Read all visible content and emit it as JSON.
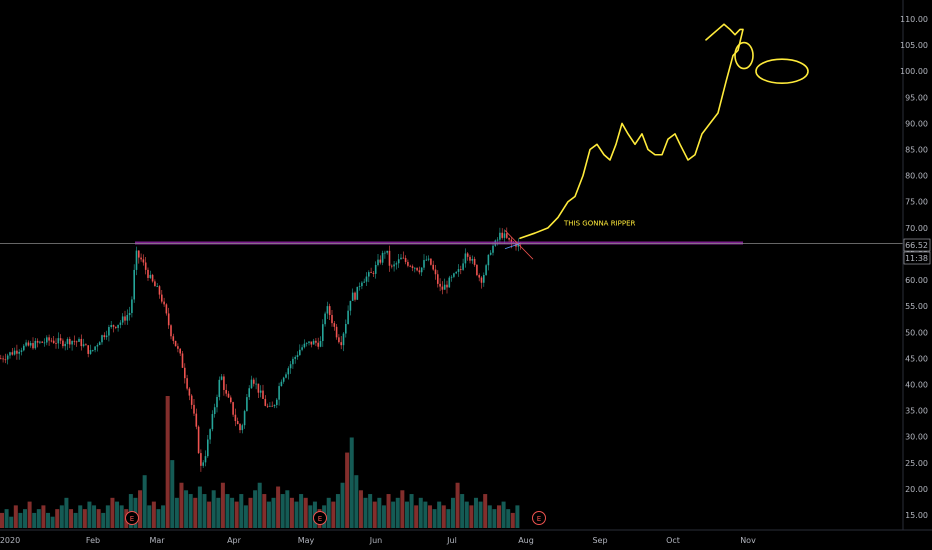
{
  "chart_data": {
    "type": "candlestick",
    "title": "",
    "xlabel": "",
    "ylabel": "",
    "x_ticks": [
      "2020",
      "Feb",
      "Mar",
      "Apr",
      "May",
      "Jun",
      "Jul",
      "Aug",
      "Sep",
      "Oct",
      "Nov"
    ],
    "y_ticks": [
      "15.00",
      "20.00",
      "25.00",
      "30.00",
      "35.00",
      "40.00",
      "45.00",
      "50.00",
      "55.00",
      "60.00",
      "65.00",
      "70.00",
      "75.00",
      "80.00",
      "85.00",
      "90.00",
      "95.00",
      "100.00",
      "105.00",
      "110.00"
    ],
    "ylim": [
      13,
      112
    ],
    "price_label": "66.52",
    "time_label": "11:38",
    "horizontal_line_level": 67,
    "annotation_text": "THIS GONNA RIPPER",
    "earnings_markers": [
      "E",
      "E",
      "E"
    ],
    "price_path": [
      [
        0,
        45
      ],
      [
        10,
        46
      ],
      [
        20,
        47
      ],
      [
        30,
        47.5
      ],
      [
        40,
        48
      ],
      [
        50,
        48.5
      ],
      [
        60,
        48
      ],
      [
        70,
        48.5
      ],
      [
        80,
        48
      ],
      [
        90,
        46
      ],
      [
        100,
        49
      ],
      [
        110,
        51
      ],
      [
        120,
        52
      ],
      [
        130,
        54
      ],
      [
        135,
        65
      ],
      [
        140,
        64
      ],
      [
        145,
        62
      ],
      [
        150,
        60
      ],
      [
        160,
        57
      ],
      [
        170,
        50
      ],
      [
        180,
        45
      ],
      [
        190,
        37
      ],
      [
        195,
        32
      ],
      [
        200,
        24
      ],
      [
        205,
        27
      ],
      [
        210,
        32
      ],
      [
        215,
        37
      ],
      [
        220,
        42
      ],
      [
        225,
        38
      ],
      [
        230,
        36
      ],
      [
        235,
        33
      ],
      [
        240,
        31
      ],
      [
        245,
        36
      ],
      [
        250,
        42
      ],
      [
        255,
        40
      ],
      [
        260,
        38
      ],
      [
        265,
        36
      ],
      [
        270,
        35
      ],
      [
        275,
        37
      ],
      [
        280,
        41
      ],
      [
        290,
        44
      ],
      [
        300,
        47
      ],
      [
        310,
        48
      ],
      [
        320,
        48
      ],
      [
        325,
        55
      ],
      [
        330,
        53
      ],
      [
        335,
        50
      ],
      [
        340,
        48
      ],
      [
        345,
        52
      ],
      [
        350,
        57
      ],
      [
        355,
        57
      ],
      [
        360,
        60
      ],
      [
        370,
        61
      ],
      [
        380,
        64
      ],
      [
        385,
        66
      ],
      [
        390,
        62
      ],
      [
        400,
        64
      ],
      [
        410,
        63
      ],
      [
        420,
        62
      ],
      [
        425,
        64
      ],
      [
        430,
        63
      ],
      [
        440,
        58
      ],
      [
        450,
        60
      ],
      [
        460,
        62
      ],
      [
        465,
        66
      ],
      [
        470,
        64
      ],
      [
        480,
        60
      ],
      [
        485,
        62
      ],
      [
        490,
        66
      ],
      [
        495,
        67
      ],
      [
        500,
        69
      ],
      [
        505,
        68
      ],
      [
        510,
        67
      ],
      [
        515,
        67
      ],
      [
        520,
        66.5
      ]
    ],
    "projection_path": [
      [
        520,
        68
      ],
      [
        535,
        69
      ],
      [
        548,
        70
      ],
      [
        558,
        72
      ],
      [
        568,
        75
      ],
      [
        575,
        76
      ],
      [
        583,
        80
      ],
      [
        590,
        85
      ],
      [
        597,
        86
      ],
      [
        604,
        84
      ],
      [
        610,
        83
      ],
      [
        616,
        86
      ],
      [
        622,
        90
      ],
      [
        628,
        88
      ],
      [
        635,
        86
      ],
      [
        642,
        88
      ],
      [
        648,
        85
      ],
      [
        655,
        84
      ],
      [
        662,
        84
      ],
      [
        668,
        87
      ],
      [
        675,
        88
      ],
      [
        680,
        86
      ],
      [
        688,
        83
      ],
      [
        695,
        84
      ],
      [
        702,
        88
      ],
      [
        710,
        90
      ],
      [
        718,
        92
      ],
      [
        726,
        98
      ],
      [
        733,
        103
      ],
      [
        738,
        104
      ],
      [
        743,
        108
      ],
      [
        740,
        108
      ],
      [
        735,
        107
      ],
      [
        730,
        108
      ],
      [
        724,
        109
      ],
      [
        718,
        108
      ],
      [
        712,
        107
      ],
      [
        706,
        106
      ]
    ],
    "volume": [
      4,
      5,
      3,
      6,
      4,
      5,
      7,
      4,
      5,
      6,
      4,
      3,
      5,
      6,
      8,
      5,
      4,
      6,
      5,
      7,
      6,
      5,
      4,
      6,
      8,
      7,
      6,
      5,
      9,
      8,
      10,
      14,
      6,
      7,
      5,
      6,
      35,
      18,
      8,
      12,
      10,
      9,
      8,
      11,
      9,
      7,
      10,
      8,
      12,
      9,
      8,
      7,
      9,
      6,
      8,
      10,
      12,
      9,
      7,
      8,
      11,
      9,
      10,
      8,
      7,
      9,
      8,
      6,
      7,
      5,
      6,
      8,
      7,
      9,
      12,
      20,
      24,
      14,
      10,
      8,
      9,
      7,
      8,
      6,
      9,
      7,
      8,
      10,
      7,
      9,
      6,
      8,
      7,
      6,
      5,
      7,
      6,
      5,
      8,
      12,
      9,
      7,
      6,
      8,
      7,
      9,
      6,
      5,
      6,
      7,
      5,
      4,
      6
    ]
  },
  "colors": {
    "background": "#000000",
    "up": "#26a69a",
    "down": "#ef5350",
    "horizontal_line": "#9c27b0",
    "projection": "#ffeb3b",
    "annotation": "#ffeb3b",
    "axis_text": "#b2b5be",
    "earnings_marker": "#ef5350"
  }
}
